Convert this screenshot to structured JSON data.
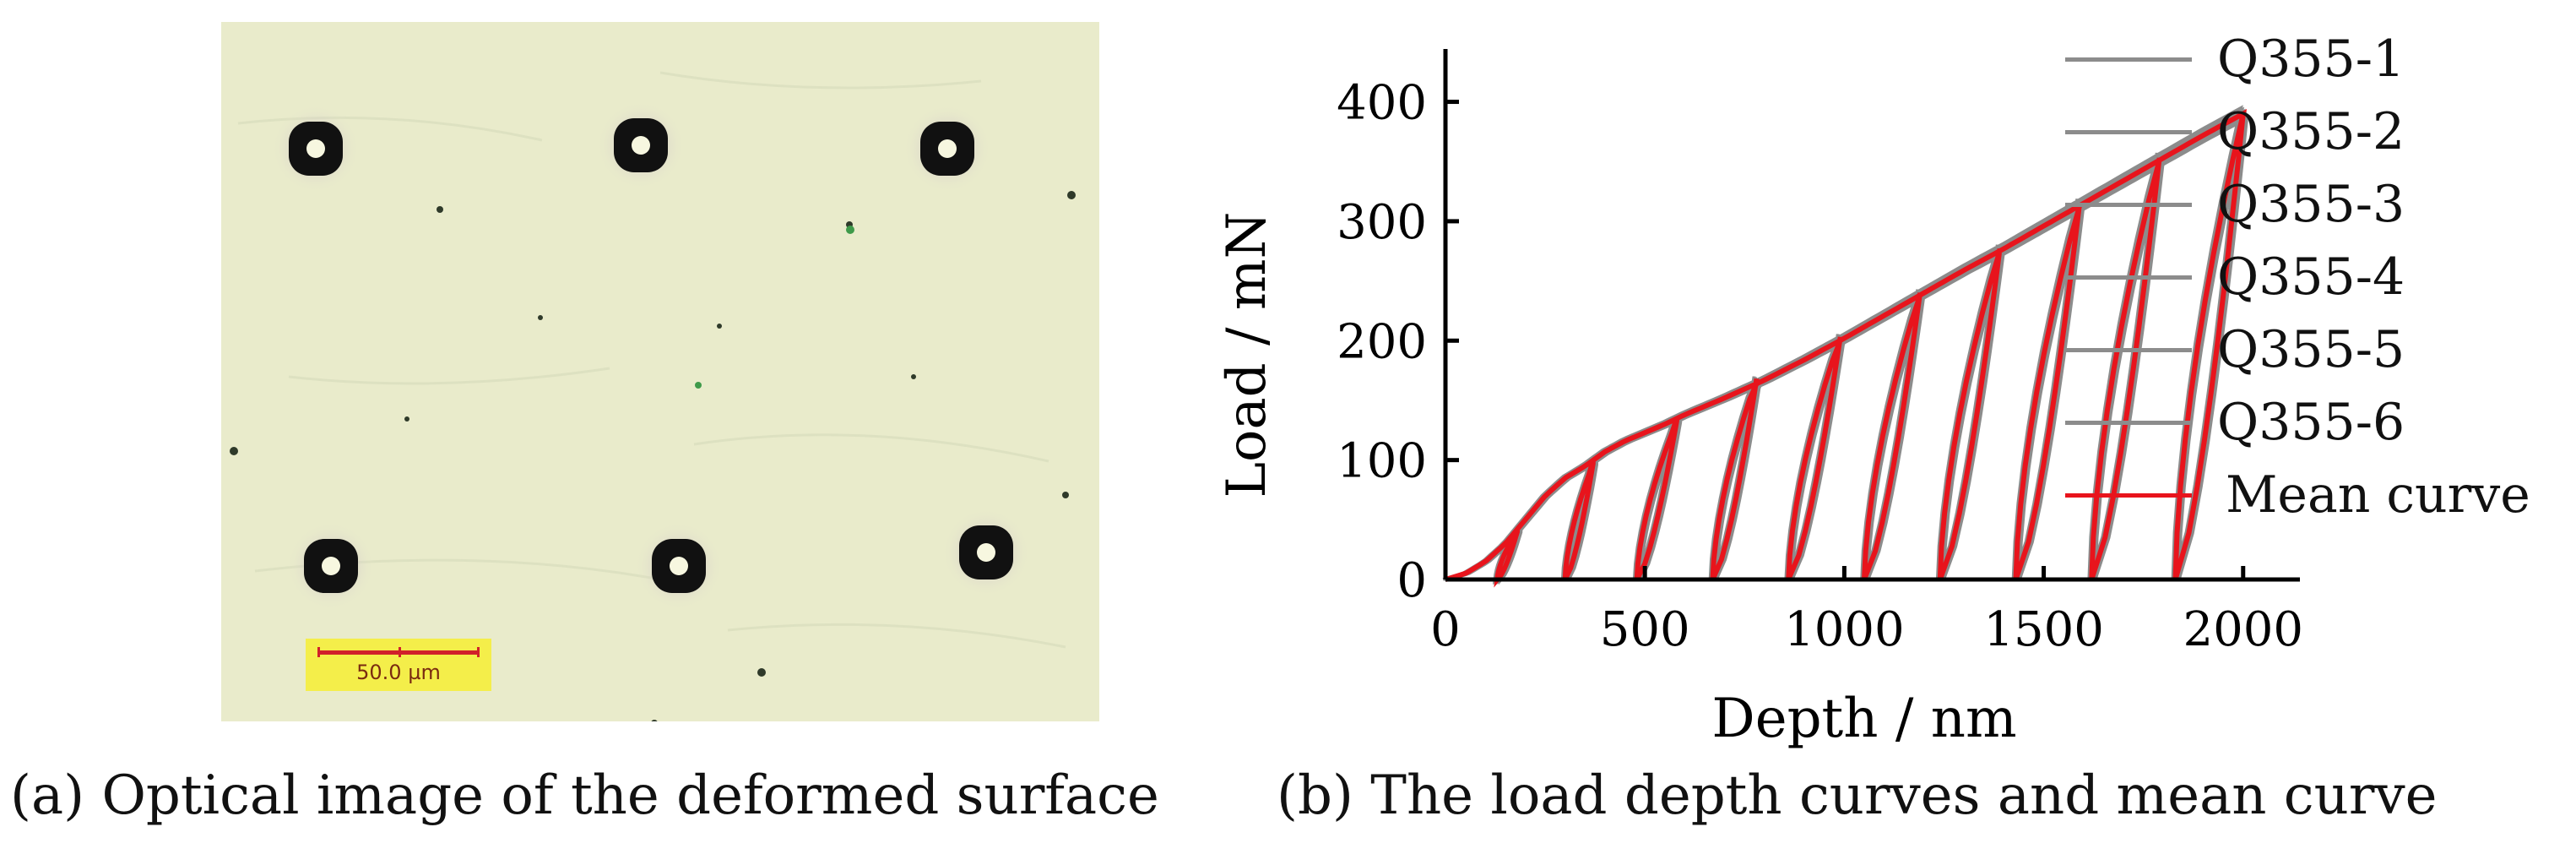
{
  "panel_a": {
    "caption": "(a) Optical image of the deformed surface",
    "scale_bar_label": "50.0 µm"
  },
  "panel_b": {
    "caption": "(b) The load depth curves and mean curve"
  },
  "colors": {
    "background_photo": "#e9ebcb",
    "specimen_curves": "#8c8c8c",
    "mean_curve": "#e8141c",
    "scale_bar": "#f4ee4a"
  },
  "chart_data": {
    "type": "line",
    "title": "",
    "xlabel": "Depth / nm",
    "ylabel": "Load / mN",
    "xlim": [
      0,
      2100
    ],
    "ylim": [
      0,
      440
    ],
    "xticks": [
      0,
      500,
      1000,
      1500,
      2000
    ],
    "yticks": [
      0,
      100,
      200,
      300,
      400
    ],
    "legend_position": "top-right",
    "grid": false,
    "series": [
      {
        "name": "Q355-1",
        "style": "grey"
      },
      {
        "name": "Q355-2",
        "style": "grey"
      },
      {
        "name": "Q355-3",
        "style": "grey"
      },
      {
        "name": "Q355-4",
        "style": "grey"
      },
      {
        "name": "Q355-5",
        "style": "grey"
      },
      {
        "name": "Q355-6",
        "style": "grey"
      },
      {
        "name": "Mean curve",
        "style": "red"
      }
    ],
    "loading_envelope": {
      "x": [
        0,
        50,
        100,
        150,
        200,
        250,
        300,
        350,
        400,
        450,
        500,
        550,
        600,
        700,
        800,
        900,
        1000,
        1100,
        1200,
        1300,
        1400,
        1500,
        1600,
        1700,
        1800,
        1900,
        2000
      ],
      "y": [
        0,
        5,
        15,
        30,
        50,
        70,
        85,
        95,
        107,
        116,
        123,
        130,
        138,
        152,
        167,
        184,
        202,
        221,
        240,
        259,
        277,
        296,
        315,
        334,
        353,
        372,
        390
      ]
    },
    "unloading_cycles": [
      {
        "peak_depth": 180,
        "peak_load": 40,
        "residual_depth": 130
      },
      {
        "peak_depth": 370,
        "peak_load": 97,
        "residual_depth": 300
      },
      {
        "peak_depth": 580,
        "peak_load": 133,
        "residual_depth": 480
      },
      {
        "peak_depth": 780,
        "peak_load": 168,
        "residual_depth": 670
      },
      {
        "peak_depth": 990,
        "peak_load": 203,
        "residual_depth": 860
      },
      {
        "peak_depth": 1190,
        "peak_load": 240,
        "residual_depth": 1050
      },
      {
        "peak_depth": 1390,
        "peak_load": 277,
        "residual_depth": 1240
      },
      {
        "peak_depth": 1590,
        "peak_load": 315,
        "residual_depth": 1430
      },
      {
        "peak_depth": 1790,
        "peak_load": 353,
        "residual_depth": 1620
      },
      {
        "peak_depth": 2000,
        "peak_load": 390,
        "residual_depth": 1830
      }
    ]
  }
}
